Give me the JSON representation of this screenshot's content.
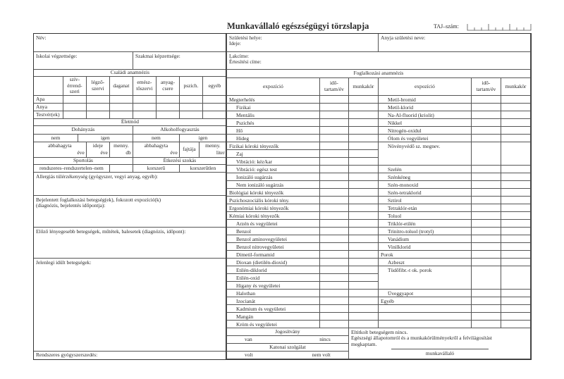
{
  "title": "Munkavállaló egészségügyi törzslapja",
  "taj_label": "TAJ–szám:",
  "personal": {
    "name_label": "Név:",
    "birth_place": "Születési helye:",
    "birth_date": "Ideje:",
    "mother_name": "Anyja születési neve:",
    "school": "Iskolai végzettsége:",
    "professional": "Szakmai képzettsége:",
    "address": "Lakcíme:",
    "notify": "Értesítési címe:"
  },
  "family": {
    "title": "Családi anamnézis",
    "columns": [
      "szív-\nérrend-\nszeri",
      "légző-\nszervi",
      "daganat",
      "emész-\ntőszervi",
      "anyag-\ncsere",
      "pszich.",
      "egyéb"
    ],
    "rows": [
      "Apa",
      "Anya",
      "Testvér(ek)"
    ]
  },
  "lifestyle": {
    "title": "Életmód",
    "smoking": "Dohányzás",
    "alcohol": "Alkoholfogyasztás",
    "no": "nem",
    "yes": "igen",
    "quit": "abbahagyta",
    "year": "éve",
    "duration": "ideje",
    "amount": "menny.",
    "pieces": "db",
    "type": "fajtája",
    "liter": "liter",
    "sport": "Sportolás",
    "sport_options": "rendszeres–rendszertelen–nem",
    "diet": "Étkezési szokás",
    "modern": "korszerű",
    "nonmodern": "korszerűtlen"
  },
  "history": {
    "allergy": "Allergiás túlérzékenység (gyógyszer, vegyi anyag, egyéb):",
    "reported": "Bejelentett foglalkozási betegség(ek), fokozott expozíció(k)\n(diagnózis, bejelentés időpontja):",
    "previous": "Előző lényegesebb betegségek, műtétek, balesetek (diagnózis, időpont):",
    "current": "Jelenlegi idült betegségek:",
    "medication": "Rendszeres gyógyszerszedés:"
  },
  "occupational": {
    "title": "Foglalkozási anamnézis",
    "headers": {
      "exposure": "expozíció",
      "duration": "idő-\ntartam/év",
      "job": "munkakör"
    },
    "left": [
      {
        "label": "Megterhelés",
        "indent": false
      },
      {
        "label": "Fizikai",
        "indent": true
      },
      {
        "label": "Mentális",
        "indent": true
      },
      {
        "label": "Pszichés",
        "indent": true
      },
      {
        "label": "Hő",
        "indent": true
      },
      {
        "label": "Hideg",
        "indent": true
      },
      {
        "label": "Fizikai kóroki tényezők",
        "indent": false
      },
      {
        "label": "Zaj",
        "indent": true
      },
      {
        "label": "Vibráció: kéz/kar",
        "indent": true
      },
      {
        "label": "Vibráció: egész test",
        "indent": true
      },
      {
        "label": "Ionizáló sugárzás",
        "indent": true
      },
      {
        "label": "Nem ionizáló sugárzás",
        "indent": true
      },
      {
        "label": "Biológiai kóroki tényezők",
        "indent": false
      },
      {
        "label": "Pszichoszociális kóroki tény.",
        "indent": false
      },
      {
        "label": "Ergonómiai kóroki tényezők",
        "indent": false
      },
      {
        "label": "Kémiai kóroki tényezők",
        "indent": false
      },
      {
        "label": "Arzén és vegyületei",
        "indent": true
      },
      {
        "label": "Benzol",
        "indent": true
      },
      {
        "label": "Benzol aminovegyületei",
        "indent": true
      },
      {
        "label": "Benzol nitrovegyületei",
        "indent": true
      },
      {
        "label": "Dimetil-formamid",
        "indent": true
      },
      {
        "label": "Dioxan (dietilén-dioxid)",
        "indent": true
      },
      {
        "label": "Etilén-diklorid",
        "indent": true
      },
      {
        "label": "Etilén-oxid",
        "indent": true
      },
      {
        "label": "Higany és vegyületei",
        "indent": true
      },
      {
        "label": "Halothan",
        "indent": true
      },
      {
        "label": "Izocianát",
        "indent": true
      },
      {
        "label": "Kadmium és vegyületei",
        "indent": true
      },
      {
        "label": "Mangán",
        "indent": true
      },
      {
        "label": "Króm és vegyületei",
        "indent": true
      }
    ],
    "right": [
      {
        "label": "Metil-bromid",
        "indent": true
      },
      {
        "label": "Metil-klorid",
        "indent": true
      },
      {
        "label": "Na-Al-fluorid (kriolit)",
        "indent": true
      },
      {
        "label": "Nikkel",
        "indent": true
      },
      {
        "label": "Nitrogén-oxidul",
        "indent": true
      },
      {
        "label": "Ólom és vegyületei",
        "indent": true
      },
      {
        "label": "Növényvédő sz. megnev.",
        "indent": true
      },
      {
        "label": "Szelén",
        "indent": true
      },
      {
        "label": "Szénkéneg",
        "indent": true
      },
      {
        "label": "Szén-monoxid",
        "indent": true
      },
      {
        "label": "Szén-tetraklorid",
        "indent": true
      },
      {
        "label": "Sztirol",
        "indent": true
      },
      {
        "label": "Tetraklór-etán",
        "indent": true
      },
      {
        "label": "Toluol",
        "indent": true
      },
      {
        "label": "Triklór-etilén",
        "indent": true
      },
      {
        "label": "Trinitro-toluol (trotyl)",
        "indent": true
      },
      {
        "label": "Vanádium",
        "indent": true
      },
      {
        "label": "Vinilklorid",
        "indent": true
      },
      {
        "label": "Porok",
        "indent": false
      },
      {
        "label": "Azbeszt",
        "indent": true
      },
      {
        "label": "Tüdőfibr.-t ok. porok",
        "indent": true
      },
      {
        "label": "Üveggyapot",
        "indent": true
      },
      {
        "label": "Egyéb",
        "indent": false
      }
    ]
  },
  "license": {
    "title": "Jogosítvány",
    "yes": "van",
    "no": "nincs"
  },
  "military": {
    "title": "Katonai szolgálat",
    "yes": "volt",
    "no": "nem volt"
  },
  "declaration": {
    "line1": "Eltitkolt betegségem nincs.",
    "line2": "Egészségi állapotomról és a munkakörülményekről a felvilágosítást",
    "line3": "megkaptam.",
    "signature": "munkavállaló"
  }
}
